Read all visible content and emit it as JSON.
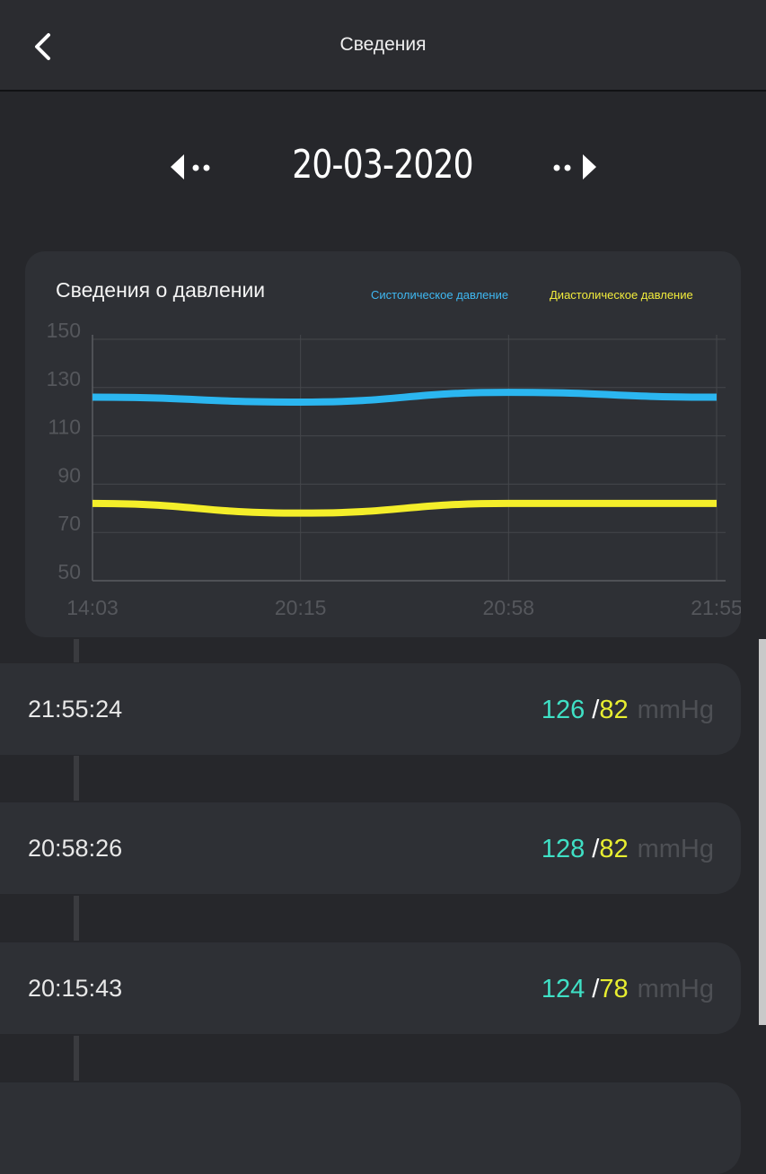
{
  "header": {
    "title": "Сведения",
    "back_icon": "chevron-left-icon"
  },
  "date_nav": {
    "date": "20-03-2020",
    "prev_icon": "prev-day-arrow-icon",
    "next_icon": "next-day-arrow-icon"
  },
  "chart_card": {
    "title": "Сведения о давлении",
    "legend_systolic": "Систолическое давление",
    "legend_diastolic": "Диастолическое давление"
  },
  "colors": {
    "systolic": "#2bb6f0",
    "diastolic": "#f4ee2a",
    "background": "#26272b",
    "card": "#2e3035"
  },
  "chart_data": {
    "type": "line",
    "title": "Сведения о давлении",
    "categories": [
      "14:03",
      "20:15",
      "20:58",
      "21:55"
    ],
    "y_ticks": [
      "150",
      "130",
      "110",
      "90",
      "70",
      "50"
    ],
    "ylim": [
      50,
      150
    ],
    "grid": true,
    "legend_position": "top-right",
    "series": [
      {
        "name": "Систолическое давление",
        "values": [
          126,
          124,
          128,
          126
        ],
        "color": "#2bb6f0"
      },
      {
        "name": "Диастолическое давление",
        "values": [
          82,
          78,
          82,
          82
        ],
        "color": "#f4ee2a"
      }
    ]
  },
  "records": [
    {
      "time": "21:55:24",
      "systolic": "126",
      "separator": "/",
      "diastolic": "82",
      "unit": "mmHg"
    },
    {
      "time": "20:58:26",
      "systolic": "128",
      "separator": "/",
      "diastolic": "82",
      "unit": "mmHg"
    },
    {
      "time": "20:15:43",
      "systolic": "124",
      "separator": "/",
      "diastolic": "78",
      "unit": "mmHg"
    }
  ]
}
